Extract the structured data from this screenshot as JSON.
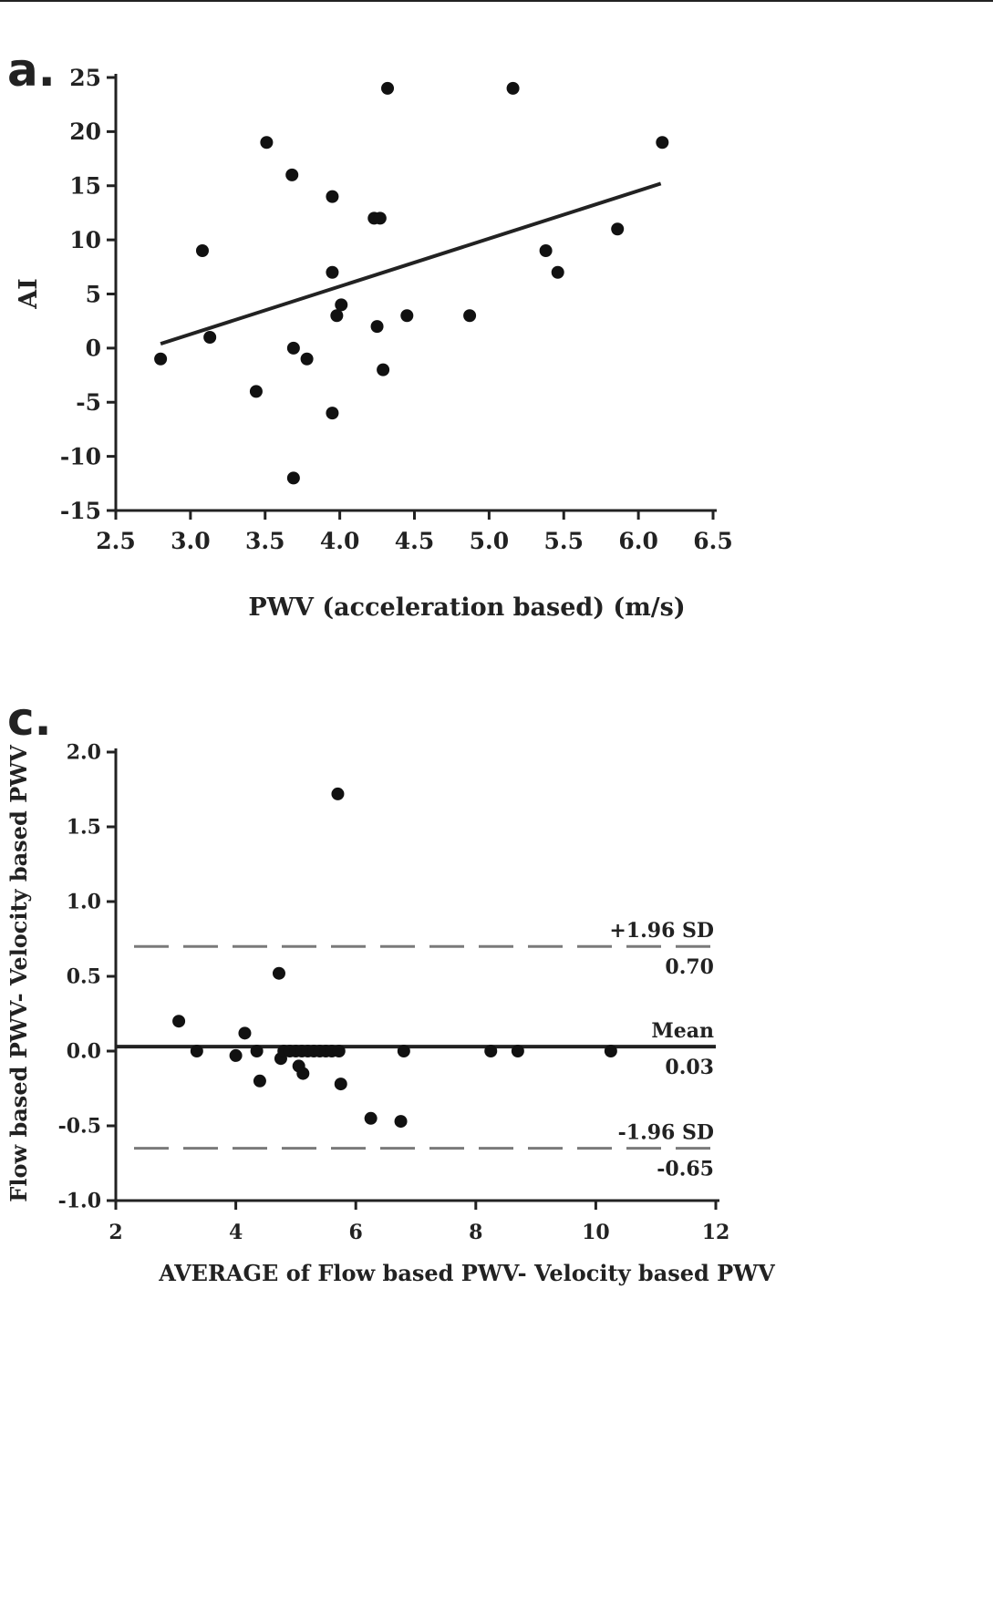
{
  "chart_data": [
    {
      "panel_label": "a.",
      "type": "scatter",
      "xlabel": "PWV (acceleration based) (m/s)",
      "ylabel": "AI",
      "xlim": [
        2.5,
        6.5
      ],
      "ylim": [
        -15,
        25
      ],
      "xticks": [
        "2.5",
        "3.0",
        "3.5",
        "4.0",
        "4.5",
        "5.0",
        "5.5",
        "6.0",
        "6.5"
      ],
      "yticks": [
        "25",
        "20",
        "15",
        "10",
        "5",
        "0",
        "-5",
        "-10",
        "-15"
      ],
      "grid": false,
      "points": [
        [
          2.8,
          -1
        ],
        [
          3.08,
          9
        ],
        [
          3.13,
          1
        ],
        [
          3.44,
          -4
        ],
        [
          3.51,
          19
        ],
        [
          3.68,
          16
        ],
        [
          3.69,
          0
        ],
        [
          3.69,
          -12
        ],
        [
          3.78,
          -1
        ],
        [
          3.95,
          14
        ],
        [
          3.95,
          7
        ],
        [
          3.95,
          -6
        ],
        [
          3.98,
          3
        ],
        [
          4.01,
          4
        ],
        [
          4.23,
          12
        ],
        [
          4.27,
          12
        ],
        [
          4.25,
          2
        ],
        [
          4.29,
          -2
        ],
        [
          4.32,
          24
        ],
        [
          4.45,
          3
        ],
        [
          4.87,
          3
        ],
        [
          5.16,
          24
        ],
        [
          5.38,
          9
        ],
        [
          5.46,
          7
        ],
        [
          5.86,
          11
        ],
        [
          6.16,
          19
        ]
      ],
      "trendline": {
        "x": [
          2.8,
          6.15
        ],
        "y": [
          0.4,
          15.2
        ]
      }
    },
    {
      "panel_label": "c.",
      "type": "scatter",
      "xlabel": "AVERAGE of Flow based PWV- Velocity based PWV",
      "ylabel": "Flow based PWV- Velocity based PWV",
      "xlim": [
        2,
        12
      ],
      "ylim": [
        -1.0,
        2.0
      ],
      "xticks": [
        "2",
        "4",
        "6",
        "8",
        "10",
        "12"
      ],
      "yticks": [
        "2.0",
        "1.5",
        "1.0",
        "0.5",
        "0.0",
        "-0.5",
        "-1.0"
      ],
      "grid": false,
      "points": [
        [
          3.05,
          0.2
        ],
        [
          3.35,
          0.0
        ],
        [
          4.0,
          -0.03
        ],
        [
          4.15,
          0.12
        ],
        [
          4.35,
          0.0
        ],
        [
          4.4,
          -0.2
        ],
        [
          4.72,
          0.52
        ],
        [
          4.75,
          -0.05
        ],
        [
          4.8,
          0.0
        ],
        [
          4.9,
          0.0
        ],
        [
          5.0,
          0.0
        ],
        [
          5.05,
          -0.1
        ],
        [
          5.1,
          0.0
        ],
        [
          5.12,
          -0.15
        ],
        [
          5.2,
          0.0
        ],
        [
          5.3,
          0.0
        ],
        [
          5.4,
          0.0
        ],
        [
          5.5,
          0.0
        ],
        [
          5.6,
          0.0
        ],
        [
          5.7,
          1.72
        ],
        [
          5.72,
          0.0
        ],
        [
          5.75,
          -0.22
        ],
        [
          6.25,
          -0.45
        ],
        [
          6.75,
          -0.47
        ],
        [
          6.8,
          0.0
        ],
        [
          8.25,
          0.0
        ],
        [
          8.7,
          0.0
        ],
        [
          10.25,
          0.0
        ]
      ],
      "reference_lines": [
        {
          "label": "+1.96 SD",
          "value_label": "0.70",
          "y": 0.7,
          "style": "dashed"
        },
        {
          "label": "Mean",
          "value_label": "0.03",
          "y": 0.03,
          "style": "solid"
        },
        {
          "label": "-1.96 SD",
          "value_label": "-0.65",
          "y": -0.65,
          "style": "dashed"
        }
      ]
    }
  ]
}
